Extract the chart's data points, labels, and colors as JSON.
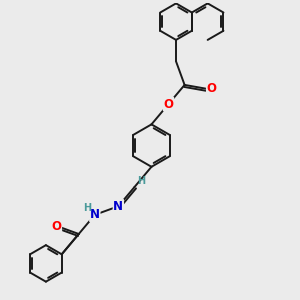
{
  "background_color": "#ebebeb",
  "bond_color": "#1a1a1a",
  "atom_colors": {
    "O": "#ff0000",
    "N": "#0000cd",
    "H": "#4a9a9a",
    "C": "#1a1a1a"
  },
  "figsize": [
    3.0,
    3.0
  ],
  "dpi": 100
}
